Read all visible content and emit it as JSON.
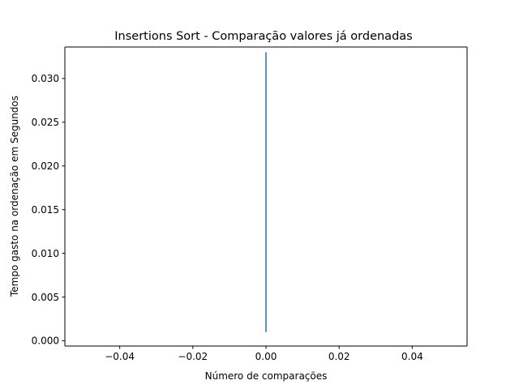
{
  "chart_data": {
    "type": "line",
    "title": "Insertions Sort - Comparação valores já ordenadas",
    "xlabel": "Número de comparações",
    "ylabel": "Tempo gasto na ordenação  em Segundos",
    "xlim": [
      -0.055,
      0.055
    ],
    "ylim": [
      -0.0006,
      0.0336
    ],
    "xticks": [
      -0.04,
      -0.02,
      0.0,
      0.02,
      0.04
    ],
    "xtick_labels": [
      "−0.04",
      "−0.02",
      "0.00",
      "0.02",
      "0.04"
    ],
    "yticks": [
      0.0,
      0.005,
      0.01,
      0.015,
      0.02,
      0.025,
      0.03
    ],
    "ytick_labels": [
      "0.000",
      "0.005",
      "0.010",
      "0.015",
      "0.020",
      "0.025",
      "0.030"
    ],
    "grid": false,
    "series": [
      {
        "color": "#1f77b4",
        "x": [
          0,
          0
        ],
        "y": [
          0.001,
          0.033
        ]
      }
    ]
  }
}
